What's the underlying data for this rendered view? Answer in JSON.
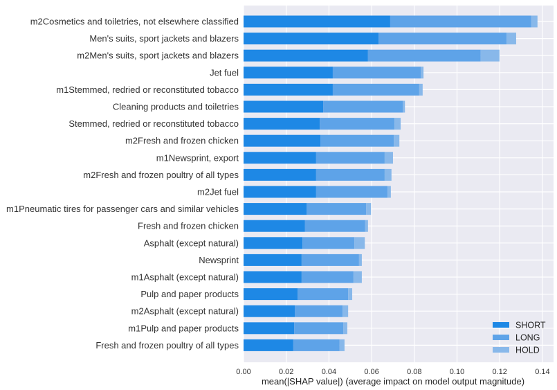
{
  "chart_data": {
    "type": "bar",
    "orientation": "horizontal",
    "stacked": true,
    "title": "",
    "xlabel": "mean(|SHAP value|) (average impact on model output magnitude)",
    "ylabel": "",
    "xlim": [
      0,
      0.145
    ],
    "xticks": [
      0.0,
      0.02,
      0.04,
      0.06,
      0.08,
      0.1,
      0.12,
      0.14
    ],
    "xtick_labels": [
      "0.00",
      "0.02",
      "0.04",
      "0.06",
      "0.08",
      "0.10",
      "0.12",
      "0.14"
    ],
    "grid": true,
    "legend_position": "bottom-right",
    "categories": [
      "m2Cosmetics and toiletries, not elsewhere classified",
      "Men's suits, sport jackets and blazers",
      "m2Men's suits, sport jackets and blazers",
      "Jet fuel",
      "m1Stemmed, redried or reconstituted tobacco",
      "Cleaning products and toiletries",
      "Stemmed, redried or reconstituted tobacco",
      "m2Fresh and frozen chicken",
      "m1Newsprint, export",
      "m2Fresh and frozen poultry of all types",
      "m2Jet fuel",
      "m1Pneumatic tires for passenger cars and similar vehicles",
      "Fresh and frozen chicken",
      "Asphalt (except natural)",
      "Newsprint",
      "m1Asphalt (except natural)",
      "Pulp and paper products",
      "m2Asphalt (except natural)",
      "m1Pulp and paper products",
      "Fresh and frozen poultry of all types"
    ],
    "series": [
      {
        "name": "SHORT",
        "color": "#1e88e5",
        "values": [
          0.0687,
          0.0632,
          0.0583,
          0.0418,
          0.0418,
          0.0373,
          0.0357,
          0.036,
          0.034,
          0.034,
          0.034,
          0.0295,
          0.0288,
          0.0276,
          0.0272,
          0.0272,
          0.0253,
          0.024,
          0.0237,
          0.0233
        ]
      },
      {
        "name": "LONG",
        "color": "#5ea3e8",
        "values": [
          0.0661,
          0.06,
          0.0528,
          0.0412,
          0.0405,
          0.0373,
          0.035,
          0.0344,
          0.0321,
          0.0321,
          0.0334,
          0.0279,
          0.0282,
          0.0243,
          0.0269,
          0.0243,
          0.0237,
          0.0224,
          0.023,
          0.0217
        ]
      },
      {
        "name": "HOLD",
        "color": "#88b8ea",
        "values": [
          0.0029,
          0.0045,
          0.0088,
          0.0013,
          0.0016,
          0.001,
          0.0029,
          0.0026,
          0.0039,
          0.0032,
          0.0016,
          0.0023,
          0.0013,
          0.0049,
          0.0013,
          0.0039,
          0.0019,
          0.0026,
          0.0019,
          0.0023
        ]
      }
    ]
  }
}
